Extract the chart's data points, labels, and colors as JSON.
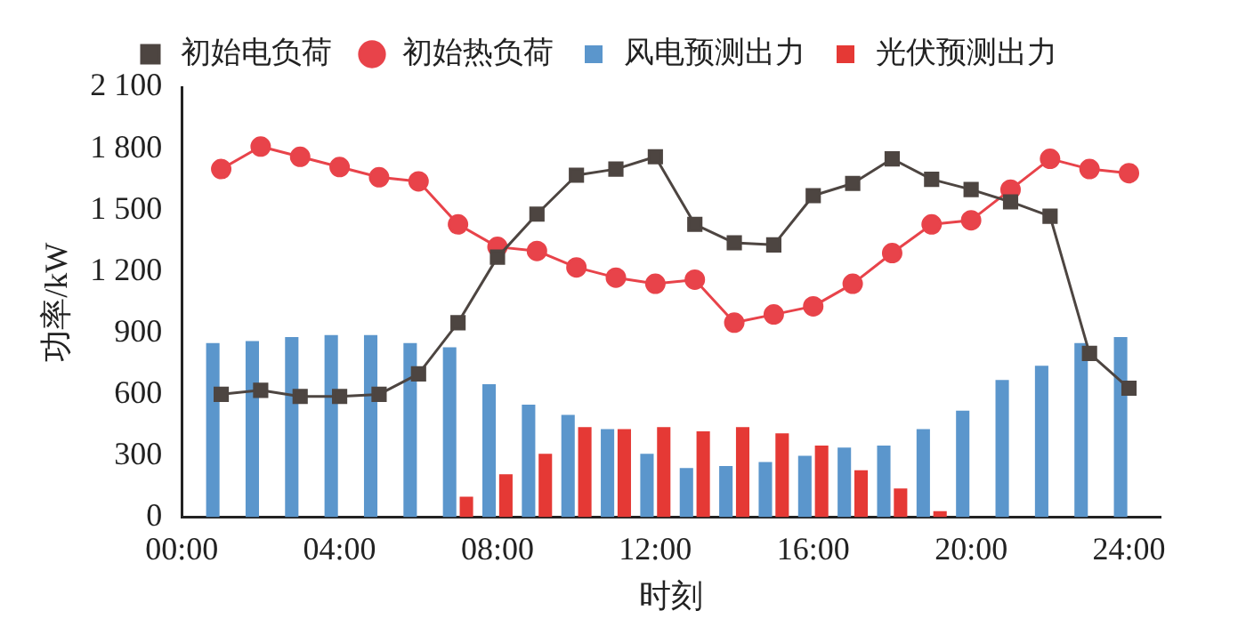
{
  "chart_data": {
    "type": "bar",
    "xlabel": "时刻",
    "ylabel": "功率/kW",
    "x": [
      1,
      2,
      3,
      4,
      5,
      6,
      7,
      8,
      9,
      10,
      11,
      12,
      13,
      14,
      15,
      16,
      17,
      18,
      19,
      20,
      21,
      22,
      23,
      24
    ],
    "series": [
      {
        "name": "初始电负荷",
        "type": "line",
        "marker": "square",
        "color": "#4d4541",
        "values": [
          600,
          620,
          590,
          590,
          600,
          700,
          950,
          1270,
          1480,
          1670,
          1700,
          1760,
          1430,
          1340,
          1330,
          1570,
          1630,
          1750,
          1650,
          1600,
          1540,
          1470,
          800,
          630
        ]
      },
      {
        "name": "初始热负荷",
        "type": "line",
        "marker": "circle",
        "color": "#e8434a",
        "values": [
          1700,
          1810,
          1760,
          1710,
          1660,
          1640,
          1430,
          1320,
          1300,
          1220,
          1170,
          1140,
          1160,
          950,
          990,
          1030,
          1140,
          1290,
          1430,
          1450,
          1600,
          1750,
          1700,
          1680
        ]
      },
      {
        "name": "风电预测出力",
        "color": "#5b96cc",
        "values": [
          850,
          860,
          880,
          890,
          890,
          850,
          830,
          650,
          550,
          500,
          430,
          310,
          240,
          250,
          270,
          300,
          340,
          350,
          430,
          520,
          670,
          740,
          850,
          880
        ]
      },
      {
        "name": "光伏预测出力",
        "color": "#e53935",
        "values": [
          0,
          0,
          0,
          0,
          0,
          0,
          100,
          210,
          310,
          440,
          430,
          440,
          420,
          440,
          410,
          350,
          230,
          140,
          30,
          0,
          0,
          0,
          0,
          0
        ]
      }
    ],
    "xlim": [
      0,
      24.8
    ],
    "xticks": [
      {
        "value": 0,
        "label": "00:00"
      },
      {
        "value": 4,
        "label": "04:00"
      },
      {
        "value": 8,
        "label": "08:00"
      },
      {
        "value": 12,
        "label": "12:00"
      },
      {
        "value": 16,
        "label": "16:00"
      },
      {
        "value": 20,
        "label": "20:00"
      },
      {
        "value": 24,
        "label": "24:00"
      }
    ],
    "ylim": [
      0,
      2100
    ],
    "yticks": [
      0,
      300,
      600,
      900,
      {
        "value": 1200,
        "label": "1 200"
      },
      {
        "value": 1500,
        "label": "1 500"
      },
      {
        "value": 1800,
        "label": "1 800"
      },
      {
        "value": 2100,
        "label": "2 100"
      }
    ],
    "grid": false,
    "legend": "top"
  }
}
